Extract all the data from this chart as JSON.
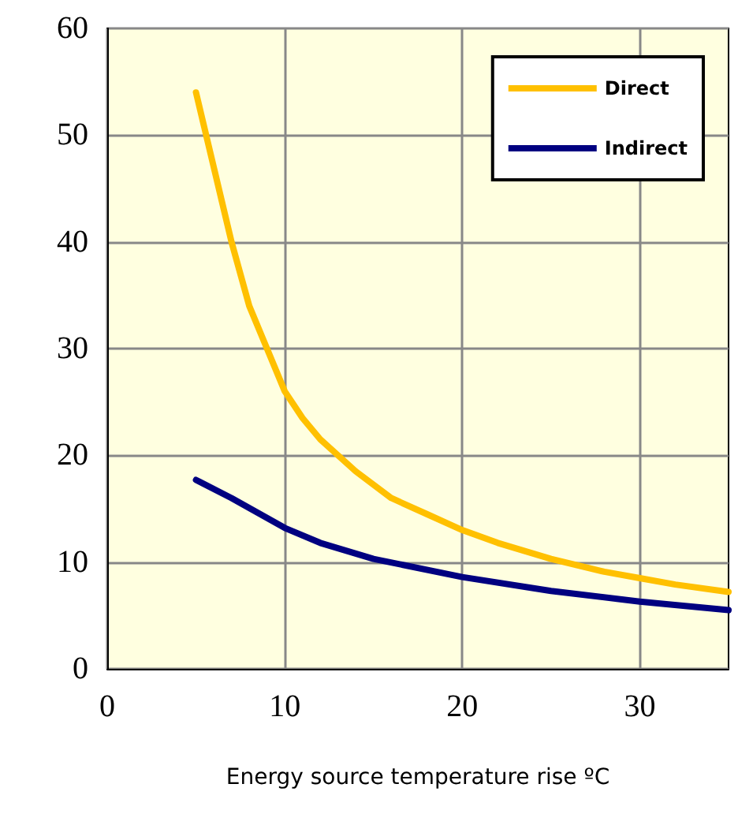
{
  "chart_data": {
    "type": "line",
    "xlabel": "Energy source temperature rise ºC",
    "xlim": [
      0,
      35
    ],
    "xticks": [
      0,
      10,
      20,
      30
    ],
    "ylim": [
      0,
      60
    ],
    "yticks": [
      0,
      10,
      20,
      30,
      40,
      50,
      60
    ],
    "grid": true,
    "legend": "top right",
    "marker": "none",
    "line_style": "solid",
    "series": [
      {
        "name": "Direct",
        "color": "#ffc000",
        "x": [
          5,
          6,
          7,
          8,
          9,
          10,
          11,
          12,
          14,
          16,
          18,
          20,
          22,
          25,
          28,
          30,
          32,
          35
        ],
        "values": [
          54,
          47,
          40,
          34,
          30,
          26,
          23.5,
          21.5,
          18.5,
          16,
          14.5,
          13,
          11.8,
          10.3,
          9.1,
          8.5,
          7.9,
          7.2
        ]
      },
      {
        "name": "Indirect",
        "color": "#000080",
        "x": [
          5,
          7,
          10,
          12,
          15,
          20,
          25,
          30,
          35
        ],
        "values": [
          17.7,
          16,
          13.2,
          11.8,
          10.3,
          8.6,
          7.3,
          6.3,
          5.5
        ]
      }
    ]
  }
}
